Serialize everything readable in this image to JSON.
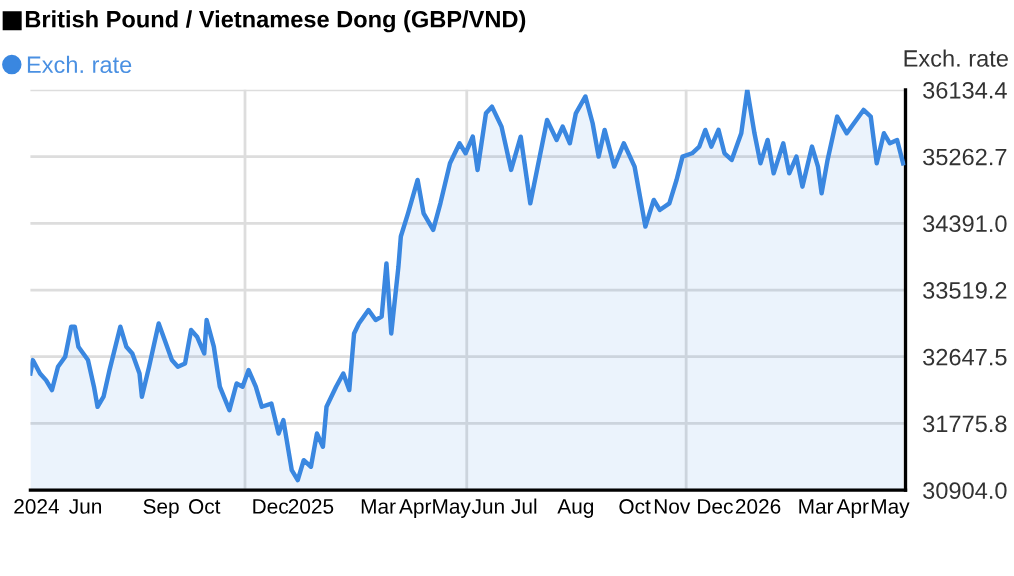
{
  "chart_data": {
    "type": "area",
    "title": "British Pound / Vietnamese Dong (GBP/VND)",
    "ylabel": "Exch. rate",
    "legend": "top left",
    "grid": "y",
    "xlim": [
      "2024-05-15",
      "2026-05-15"
    ],
    "xticks": [
      {
        "value": "2024-05-20",
        "label": "2024"
      },
      {
        "value": "2024-06-30",
        "label": "Jun"
      },
      {
        "value": "2024-09-01",
        "label": "Sep"
      },
      {
        "value": "2024-10-07",
        "label": "Oct"
      },
      {
        "value": "2024-12-01",
        "label": "Dec"
      },
      {
        "value": "2025-01-04",
        "label": "2025"
      },
      {
        "value": "2025-03-01",
        "label": "Mar"
      },
      {
        "value": "2025-04-01",
        "label": "Apr"
      },
      {
        "value": "2025-05-01",
        "label": "May"
      },
      {
        "value": "2025-06-01",
        "label": "Jun"
      },
      {
        "value": "2025-07-01",
        "label": "Jul"
      },
      {
        "value": "2025-08-13",
        "label": "Aug"
      },
      {
        "value": "2025-10-01",
        "label": "Oct"
      },
      {
        "value": "2025-11-01",
        "label": "Nov"
      },
      {
        "value": "2025-12-07",
        "label": "Dec"
      },
      {
        "value": "2026-01-12",
        "label": "2026"
      },
      {
        "value": "2026-03-01",
        "label": "Mar"
      },
      {
        "value": "2026-04-01",
        "label": "Apr"
      },
      {
        "value": "2026-05-02",
        "label": "May"
      }
    ],
    "ylim": [
      30904.0,
      36134.4
    ],
    "yticks": [
      {
        "value": 30904,
        "label": "30904.0"
      },
      31775.8,
      32647.5,
      33519.2,
      {
        "value": 34391,
        "label": "34391.0"
      },
      35262.7,
      36134.4
    ],
    "ref_lines": [
      {
        "axis": "x",
        "value": "2024-11-10",
        "color": "#dddddd"
      },
      {
        "axis": "x",
        "value": "2025-05-14",
        "color": "#dddddd"
      },
      {
        "axis": "x",
        "value": "2025-11-13",
        "color": "#dddddd"
      }
    ],
    "x": [
      "2024-05-15",
      "2024-05-17",
      "2024-05-23",
      "2024-05-28",
      "2024-06-02",
      "2024-06-07",
      "2024-06-13",
      "2024-06-18",
      "2024-06-21",
      "2024-06-24",
      "2024-07-02",
      "2024-07-07",
      "2024-07-10",
      "2024-07-15",
      "2024-07-20",
      "2024-07-29",
      "2024-08-03",
      "2024-08-08",
      "2024-08-14",
      "2024-08-16",
      "2024-08-22",
      "2024-08-30",
      "2024-09-04",
      "2024-09-10",
      "2024-09-15",
      "2024-09-21",
      "2024-09-26",
      "2024-10-01",
      "2024-10-07",
      "2024-10-09",
      "2024-10-15",
      "2024-10-20",
      "2024-10-28",
      "2024-11-03",
      "2024-11-08",
      "2024-11-13",
      "2024-11-19",
      "2024-11-24",
      "2024-12-02",
      "2024-12-08",
      "2024-12-12",
      "2024-12-19",
      "2024-12-24",
      "2024-12-29",
      "2025-01-04",
      "2025-01-09",
      "2025-01-14",
      "2025-01-17",
      "2025-01-25",
      "2025-01-31",
      "2025-02-05",
      "2025-02-09",
      "2025-02-13",
      "2025-02-21",
      "2025-02-27",
      "2025-03-04",
      "2025-03-08",
      "2025-03-12",
      "2025-03-18",
      "2025-03-20",
      "2025-03-26",
      "2025-04-03",
      "2025-04-08",
      "2025-04-16",
      "2025-04-22",
      "2025-04-30",
      "2025-05-08",
      "2025-05-13",
      "2025-05-19",
      "2025-05-23",
      "2025-05-30",
      "2025-06-04",
      "2025-06-12",
      "2025-06-20",
      "2025-06-28",
      "2025-07-06",
      "2025-07-20",
      "2025-07-28",
      "2025-08-02",
      "2025-08-08",
      "2025-08-13",
      "2025-08-21",
      "2025-08-27",
      "2025-09-01",
      "2025-09-06",
      "2025-09-14",
      "2025-09-22",
      "2025-10-01",
      "2025-10-06",
      "2025-10-10",
      "2025-10-17",
      "2025-10-22",
      "2025-10-30",
      "2025-11-05",
      "2025-11-10",
      "2025-11-18",
      "2025-11-24",
      "2025-11-29",
      "2025-12-04",
      "2025-12-10",
      "2025-12-15",
      "2025-12-21",
      "2025-12-29",
      "2026-01-03",
      "2026-01-09",
      "2026-01-14",
      "2026-01-20",
      "2026-01-25",
      "2026-02-02",
      "2026-02-07",
      "2026-02-13",
      "2026-02-18",
      "2026-02-26",
      "2026-03-03",
      "2026-03-06",
      "2026-03-11",
      "2026-03-19",
      "2026-03-27",
      "2026-04-02",
      "2026-04-10",
      "2026-04-16",
      "2026-04-21",
      "2026-04-27",
      "2026-05-02",
      "2026-05-08",
      "2026-05-13"
    ],
    "series": [
      {
        "name": "Exch. rate",
        "color": "#3a87e0",
        "values": [
          32429,
          32604,
          32429,
          32342,
          32212,
          32517,
          32648,
          33040,
          33040,
          32779,
          32604,
          32256,
          31994,
          32125,
          32473,
          33040,
          32779,
          32690,
          32429,
          32125,
          32517,
          33082,
          32865,
          32604,
          32517,
          32560,
          32996,
          32910,
          32690,
          33127,
          32779,
          32256,
          31950,
          32298,
          32256,
          32473,
          32256,
          31994,
          32036,
          31644,
          31819,
          31165,
          31035,
          31296,
          31210,
          31644,
          31471,
          31994,
          32256,
          32429,
          32212,
          32952,
          33082,
          33258,
          33127,
          33171,
          33867,
          32952,
          33825,
          34218,
          34521,
          34957,
          34521,
          34304,
          34652,
          35175,
          35436,
          35306,
          35523,
          35088,
          35828,
          35915,
          35654,
          35088,
          35523,
          34652,
          35741,
          35480,
          35654,
          35436,
          35828,
          36048,
          35698,
          35262,
          35611,
          35132,
          35436,
          35132,
          34696,
          34348,
          34696,
          34565,
          34652,
          34957,
          35262,
          35306,
          35393,
          35611,
          35393,
          35611,
          35306,
          35219,
          35567,
          36134,
          35567,
          35175,
          35480,
          35044,
          35436,
          35044,
          35262,
          34870,
          35393,
          35132,
          34783,
          35219,
          35785,
          35567,
          35698,
          35872,
          35785,
          35175,
          35567,
          35436,
          35480,
          35175
        ]
      }
    ]
  }
}
